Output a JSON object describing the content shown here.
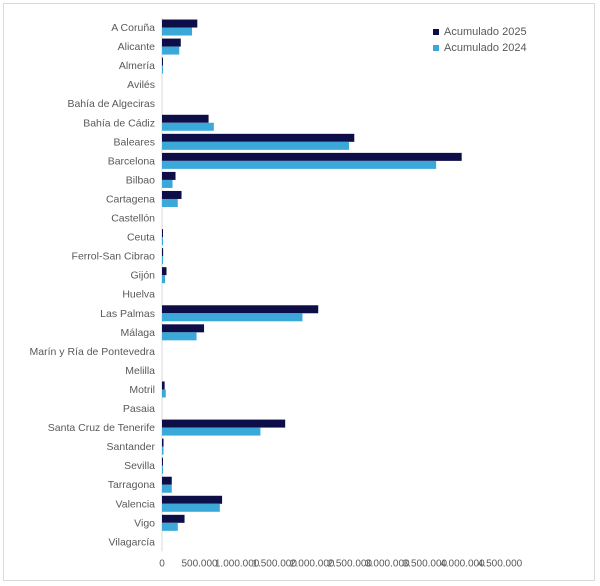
{
  "chart_data": {
    "type": "bar",
    "orientation": "horizontal",
    "categories": [
      "A Coruña",
      "Alicante",
      "Almería",
      "Avilés",
      "Bahía de Algeciras",
      "Bahía de Cádiz",
      "Baleares",
      "Barcelona",
      "Bilbao",
      "Cartagena",
      "Castellón",
      "Ceuta",
      "Ferrol-San Cibrao",
      "Gijón",
      "Huelva",
      "Las Palmas",
      "Málaga",
      "Marín y Ría de Pontevedra",
      "Melilla",
      "Motril",
      "Pasaia",
      "Santa Cruz de Tenerife",
      "Santander",
      "Sevilla",
      "Tarragona",
      "Valencia",
      "Vigo",
      "Vilagarcía"
    ],
    "series": [
      {
        "name": "Acumulado 2025",
        "color": "#0d0d47",
        "values": [
          470000,
          250000,
          12000,
          0,
          0,
          620000,
          2560000,
          3990000,
          180000,
          260000,
          0,
          4000,
          15000,
          60000,
          0,
          2080000,
          560000,
          0,
          0,
          35000,
          0,
          1640000,
          20000,
          10000,
          130000,
          800000,
          300000,
          0
        ]
      },
      {
        "name": "Acumulado 2024",
        "color": "#3aa8d8",
        "values": [
          400000,
          230000,
          10000,
          0,
          0,
          690000,
          2490000,
          3650000,
          140000,
          210000,
          0,
          3000,
          10000,
          40000,
          0,
          1870000,
          460000,
          0,
          0,
          50000,
          0,
          1310000,
          20000,
          8000,
          130000,
          770000,
          210000,
          0
        ]
      }
    ],
    "x_ticks": [
      "0",
      "500.000",
      "1.000.000",
      "1.500.000",
      "2.000.000",
      "2.500.000",
      "3.000.000",
      "3.500.000",
      "4.000.000",
      "4.500.000"
    ],
    "xlim": [
      0,
      4500000
    ],
    "legend_position": "top-right",
    "grid": false,
    "title": "",
    "xlabel": "",
    "ylabel": ""
  }
}
